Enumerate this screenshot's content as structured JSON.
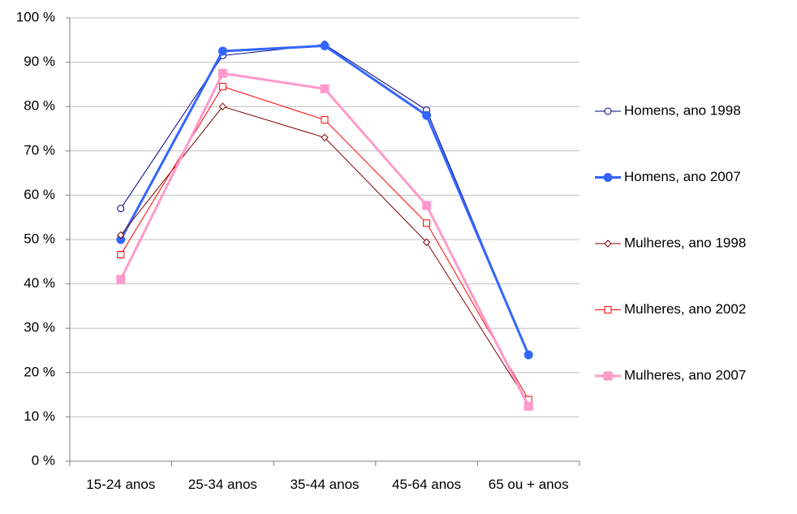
{
  "chart_data": {
    "type": "line",
    "categories": [
      "15-24 anos",
      "25-34 anos",
      "35-44 anos",
      "45-64 anos",
      "65 ou + anos"
    ],
    "series": [
      {
        "name": "Homens, ano 1998",
        "color": "#000080",
        "marker": "circle",
        "filled": false,
        "width": 1,
        "values": [
          57,
          91.5,
          94,
          79.2,
          24
        ]
      },
      {
        "name": "Homens, ano 2007",
        "color": "#3366ff",
        "marker": "circle",
        "filled": true,
        "width": 3,
        "values": [
          50,
          92.5,
          93.7,
          78,
          24
        ]
      },
      {
        "name": "Mulheres, ano 1998",
        "color": "#800000",
        "marker": "diamond",
        "filled": false,
        "width": 1,
        "values": [
          51,
          80,
          73,
          49.4,
          13
        ]
      },
      {
        "name": "Mulheres, ano 2002",
        "color": "#ff0000",
        "marker": "square",
        "filled": false,
        "width": 1,
        "values": [
          46.6,
          84.5,
          77,
          53.7,
          13.9
        ]
      },
      {
        "name": "Mulheres, ano 2007",
        "color": "#ff99cc",
        "marker": "square",
        "filled": true,
        "width": 3,
        "values": [
          41,
          87.5,
          84,
          57.7,
          12.4
        ]
      }
    ],
    "ylim": [
      0,
      100
    ],
    "yticks": [
      {
        "value": 0,
        "label": "0 %"
      },
      {
        "value": 10,
        "label": "10 %"
      },
      {
        "value": 20,
        "label": "20 %"
      },
      {
        "value": 30,
        "label": "30 %"
      },
      {
        "value": 40,
        "label": "40 %"
      },
      {
        "value": 50,
        "label": "50 %"
      },
      {
        "value": 60,
        "label": "60 %"
      },
      {
        "value": 70,
        "label": "70 %"
      },
      {
        "value": 80,
        "label": "80 %"
      },
      {
        "value": 90,
        "label": "90 %"
      },
      {
        "value": 100,
        "label": "100 %"
      }
    ],
    "grid": true,
    "legend": "right"
  }
}
